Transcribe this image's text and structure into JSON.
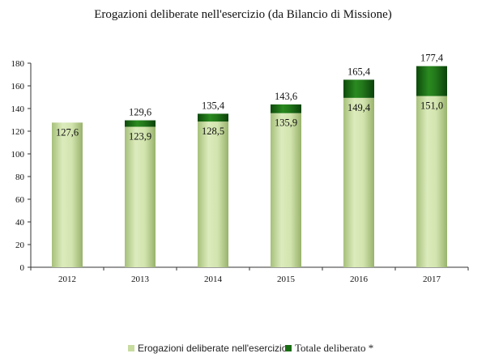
{
  "chart_data": {
    "type": "bar",
    "stacked": true,
    "title": "Erogazioni deliberate nell'esercizio (da Bilancio di Missione)",
    "categories": [
      "2012",
      "2013",
      "2014",
      "2015",
      "2016",
      "2017"
    ],
    "series": [
      {
        "name": "Erogazioni deliberate nell'esercizio",
        "values": [
          127.6,
          123.9,
          128.5,
          135.9,
          149.4,
          151.0
        ],
        "labels": [
          "127,6",
          "123,9",
          "128,5",
          "135,9",
          "149,4",
          "151,0"
        ],
        "color": "#c8dca0"
      },
      {
        "name": "Totale deliberato *",
        "totals": [
          null,
          129.6,
          135.4,
          143.6,
          165.4,
          177.4
        ],
        "labels": [
          "",
          "129,6",
          "135,4",
          "143,6",
          "165,4",
          "177,4"
        ],
        "color": "#1a6e14"
      }
    ],
    "yticks": [
      0,
      20,
      40,
      60,
      80,
      100,
      120,
      140,
      160,
      180
    ],
    "ylim": [
      0,
      180
    ],
    "grid": false,
    "legend_position": "bottom"
  }
}
